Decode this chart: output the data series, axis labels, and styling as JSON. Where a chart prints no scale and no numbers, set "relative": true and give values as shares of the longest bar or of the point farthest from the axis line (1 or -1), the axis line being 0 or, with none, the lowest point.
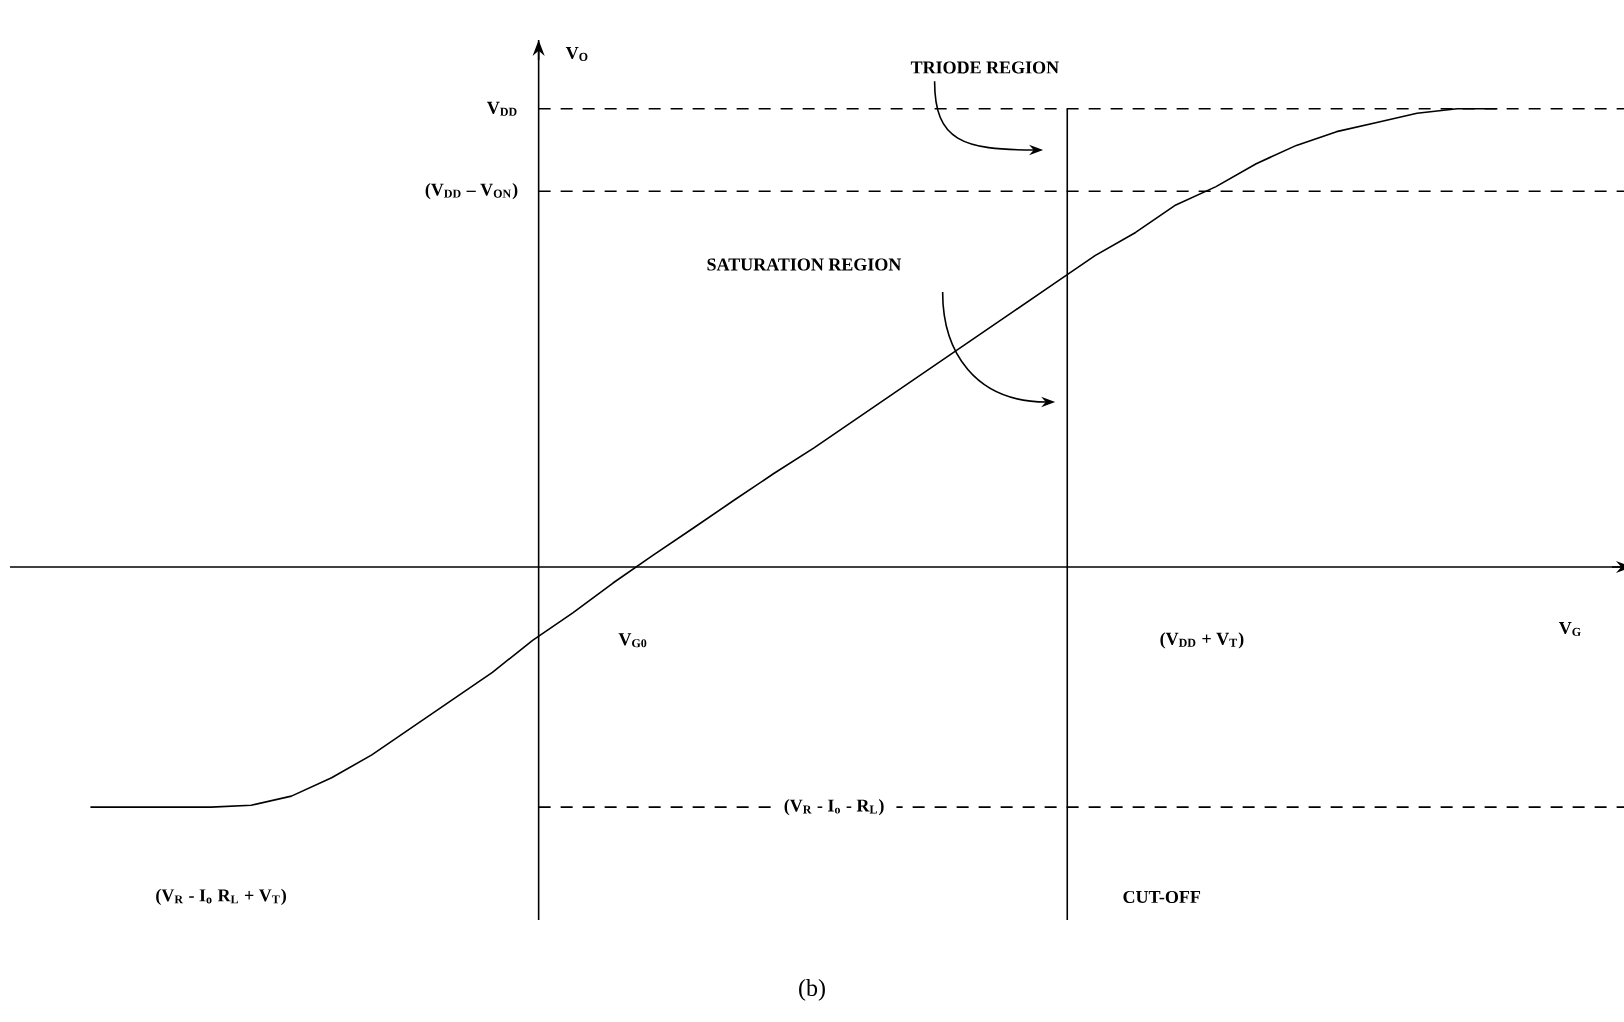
{
  "chart_data": {
    "type": "line",
    "relative": true,
    "xlabel": "V$_{G}$",
    "ylabel": "V$_{O}$",
    "categories": [
      null,
      null,
      null,
      null,
      null,
      null,
      null,
      null,
      null,
      null,
      null,
      null,
      null,
      null,
      null,
      null,
      null,
      null,
      null,
      null,
      null,
      null,
      null,
      null,
      null,
      null,
      null,
      null,
      null,
      null,
      null,
      null,
      null,
      null,
      null,
      null
    ],
    "series": [
      {
        "color": "#000000",
        "values": [
          -0.524,
          -0.524,
          -0.524,
          -0.524,
          -0.52,
          -0.5,
          -0.46,
          -0.41,
          -0.35,
          -0.29,
          -0.23,
          -0.16,
          -0.1,
          -0.035,
          0.026,
          0.085,
          0.145,
          0.204,
          0.26,
          0.32,
          0.38,
          0.44,
          0.5,
          0.56,
          0.62,
          0.68,
          0.73,
          0.79,
          0.83,
          0.88,
          0.92,
          0.95,
          0.97,
          0.99,
          1.0,
          1.0
        ]
      }
    ],
    "ref_lines": [
      {
        "axis": "y",
        "value": 1,
        "label": "V$_{DD}$",
        "line_style": "dashed"
      },
      {
        "axis": "y",
        "value": 0.82,
        "label": "(V$_{DD}$ – V$_{ON}$)",
        "line_style": "dashed"
      },
      {
        "axis": "y",
        "value": -0.524,
        "label": "(V$_{R}$ - I$_{o}$ - R$_{L}$)",
        "line_style": "dashed"
      }
    ],
    "annotations": [
      "TRIODE REGION",
      "SATURATION REGION",
      "(b)",
      "V$_{G0}$",
      "(V$_{DD}$ + V$_{T}$)",
      "(V$_{R}$ - I$_{o}$ R$_{L}$ + V$_{T}$)",
      "CUT-OFF"
    ],
    "line_style": "solid",
    "marker": "none"
  }
}
